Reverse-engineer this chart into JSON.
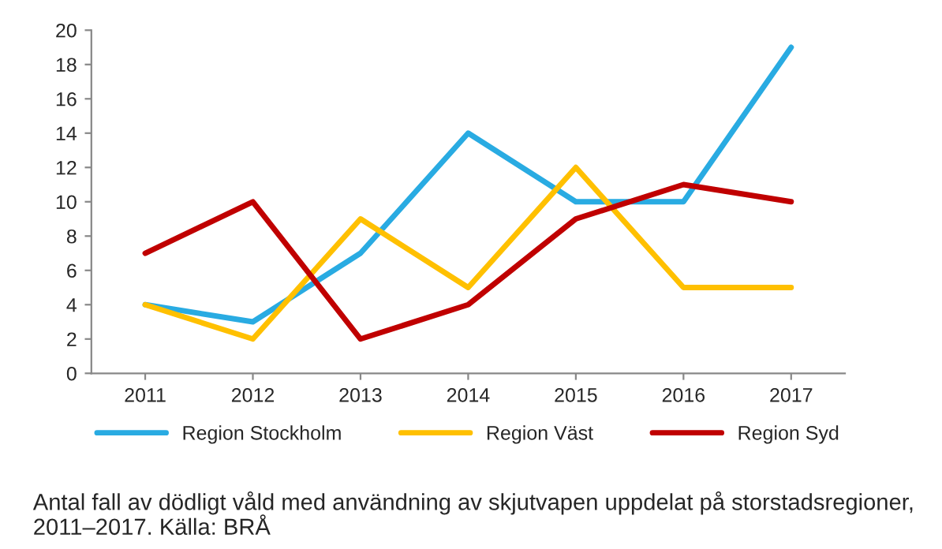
{
  "chart_data": {
    "type": "line",
    "categories": [
      "2011",
      "2012",
      "2013",
      "2014",
      "2015",
      "2016",
      "2017"
    ],
    "series": [
      {
        "name": "Region Stockholm",
        "color": "#29abe2",
        "values": [
          4,
          3,
          7,
          14,
          10,
          10,
          19
        ]
      },
      {
        "name": "Region Väst",
        "color": "#ffc000",
        "values": [
          4,
          2,
          9,
          5,
          12,
          5,
          5
        ]
      },
      {
        "name": "Region Syd",
        "color": "#c00000",
        "values": [
          7,
          10,
          2,
          4,
          9,
          11,
          10
        ]
      }
    ],
    "ylim": [
      0,
      20
    ],
    "yticks": [
      0,
      2,
      4,
      6,
      8,
      10,
      12,
      14,
      16,
      18,
      20
    ],
    "grid": false,
    "legend": "bottom",
    "marker": "none",
    "line_style": "solid",
    "annotations": [
      "Antal fall av dödligt våld med användning av skjutvapen uppdelat på storstadsregioner, 2011–2017. Källa: BRÅ"
    ]
  }
}
